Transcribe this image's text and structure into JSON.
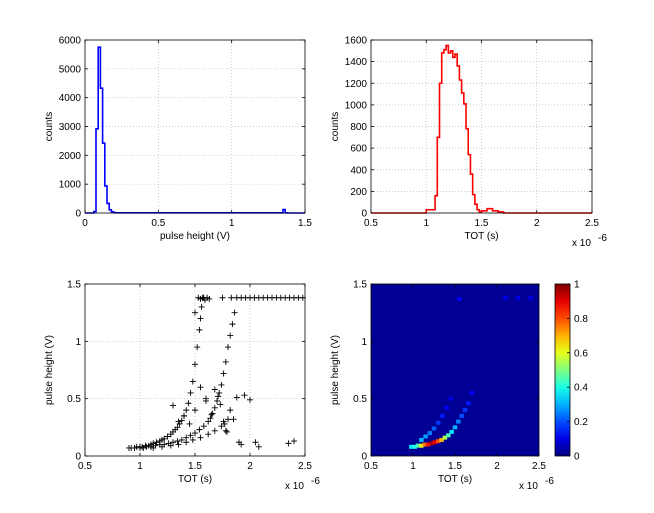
{
  "chart_data": [
    {
      "type": "histogram",
      "title": "",
      "xlabel": "pulse height (V)",
      "ylabel": "counts",
      "xlim": [
        0,
        1.5
      ],
      "ylim": [
        0,
        6000
      ],
      "xticks": [
        "0",
        "0.5",
        "1",
        "1.5"
      ],
      "yticks": [
        "0",
        "1000",
        "2000",
        "3000",
        "4000",
        "5000",
        "6000"
      ],
      "color": "#0000ff",
      "bin_edges": [
        0.0,
        0.06,
        0.075,
        0.09,
        0.105,
        0.12,
        0.135,
        0.15,
        0.165,
        0.18,
        0.195,
        0.21,
        0.3,
        1.35,
        1.365,
        1.38,
        1.5
      ],
      "counts": [
        0,
        50,
        2920,
        5750,
        4330,
        2420,
        940,
        330,
        110,
        40,
        10,
        8,
        5,
        120,
        5,
        0
      ]
    },
    {
      "type": "histogram",
      "title": "",
      "xlabel": "TOT (s)",
      "ylabel": "counts",
      "x_multiplier": "x 10",
      "x_exponent": "-6",
      "xlim": [
        0.5,
        2.5
      ],
      "ylim": [
        0,
        1600
      ],
      "xticks": [
        "0.5",
        "1",
        "1.5",
        "2",
        "2.5"
      ],
      "yticks": [
        "0",
        "200",
        "400",
        "600",
        "800",
        "1000",
        "1200",
        "1400",
        "1600"
      ],
      "color": "#ff0000",
      "bin_edges": [
        0.5,
        1.0,
        1.05,
        1.08,
        1.1,
        1.12,
        1.14,
        1.16,
        1.18,
        1.2,
        1.22,
        1.24,
        1.26,
        1.28,
        1.3,
        1.32,
        1.34,
        1.36,
        1.38,
        1.4,
        1.42,
        1.44,
        1.46,
        1.48,
        1.5,
        1.55,
        1.6,
        1.65,
        1.7,
        2.5
      ],
      "counts": [
        0,
        30,
        30,
        160,
        700,
        1200,
        1480,
        1510,
        1550,
        1480,
        1500,
        1440,
        1470,
        1360,
        1230,
        1110,
        1010,
        780,
        540,
        360,
        170,
        80,
        30,
        10,
        20,
        40,
        20,
        10,
        0
      ]
    },
    {
      "type": "scatter",
      "title": "",
      "xlabel": "TOT (s)",
      "ylabel": "pulse height (V)",
      "x_multiplier": "x 10",
      "x_exponent": "-6",
      "xlim": [
        0.5,
        2.5
      ],
      "ylim": [
        0,
        1.5
      ],
      "xticks": [
        "0.5",
        "1",
        "1.5",
        "2",
        "2.5"
      ],
      "yticks": [
        "0",
        "0.5",
        "1",
        "1.5"
      ],
      "marker": "+",
      "color": "#000000",
      "x": [
        0.9,
        0.92,
        0.95,
        0.97,
        1.0,
        1.02,
        1.05,
        1.08,
        1.1,
        1.12,
        1.15,
        1.18,
        1.2,
        1.22,
        1.25,
        1.28,
        1.3,
        1.32,
        1.34,
        1.36,
        1.38,
        1.4,
        1.42,
        1.44,
        1.46,
        1.48,
        1.5,
        1.52,
        1.54,
        1.55,
        1.56,
        1.57,
        1.58,
        1.0,
        1.03,
        1.06,
        1.1,
        1.14,
        1.18,
        1.22,
        1.26,
        1.3,
        1.34,
        1.38,
        1.42,
        1.46,
        1.5,
        1.54,
        1.58,
        1.62,
        1.64,
        1.66,
        1.68,
        1.7,
        1.72,
        1.74,
        1.76,
        1.78,
        1.8,
        1.82,
        1.84,
        1.86,
        1.12,
        1.2,
        1.28,
        1.35,
        1.42,
        1.48,
        1.55,
        1.62,
        1.68,
        1.74,
        1.8,
        1.53,
        1.55,
        1.57,
        1.59,
        1.61,
        1.63,
        1.68,
        1.71,
        1.73,
        1.76,
        1.77,
        1.78,
        1.79,
        1.82,
        1.95,
        2.0,
        1.35,
        1.4,
        1.45,
        1.5,
        1.55,
        1.6,
        1.3,
        1.85,
        1.9,
        1.92,
        2.05,
        2.08,
        1.6,
        1.65,
        1.88,
        2.35,
        2.4,
        1.5,
        1.75,
        1.83,
        1.88,
        1.92,
        1.96,
        2.0,
        2.04,
        2.08,
        2.12,
        2.16,
        2.2,
        2.24,
        2.28,
        2.32,
        2.36,
        2.4,
        2.44,
        2.48
      ],
      "y": [
        0.07,
        0.07,
        0.07,
        0.08,
        0.08,
        0.08,
        0.09,
        0.09,
        0.1,
        0.11,
        0.12,
        0.13,
        0.14,
        0.15,
        0.17,
        0.19,
        0.21,
        0.23,
        0.25,
        0.28,
        0.31,
        0.35,
        0.4,
        0.46,
        0.55,
        0.65,
        0.8,
        0.95,
        1.1,
        1.2,
        1.3,
        1.38,
        1.38,
        0.07,
        0.07,
        0.08,
        0.08,
        0.09,
        0.1,
        0.1,
        0.11,
        0.12,
        0.13,
        0.14,
        0.16,
        0.18,
        0.2,
        0.23,
        0.26,
        0.3,
        0.33,
        0.37,
        0.42,
        0.48,
        0.55,
        0.62,
        0.72,
        0.82,
        0.95,
        1.05,
        1.15,
        1.25,
        0.07,
        0.08,
        0.09,
        0.1,
        0.12,
        0.14,
        0.16,
        0.19,
        0.22,
        0.26,
        0.32,
        1.38,
        1.37,
        1.38,
        1.36,
        1.38,
        1.37,
        0.58,
        0.52,
        0.45,
        0.3,
        0.28,
        0.22,
        0.21,
        0.4,
        0.53,
        0.49,
        0.3,
        0.35,
        0.28,
        0.4,
        0.6,
        0.5,
        0.44,
        0.32,
        0.12,
        0.1,
        0.12,
        0.08,
        0.48,
        0.36,
        0.51,
        0.11,
        0.13,
        1.25,
        1.38,
        1.38,
        1.38,
        1.38,
        1.38,
        1.38,
        1.38,
        1.38,
        1.38,
        1.38,
        1.38,
        1.38,
        1.38,
        1.38,
        1.38,
        1.38,
        1.38,
        1.38
      ]
    },
    {
      "type": "heatmap",
      "title": "",
      "xlabel": "TOT (s)",
      "ylabel": "pulse height (V)",
      "x_multiplier": "x 10",
      "x_exponent": "-6",
      "xlim": [
        0.5,
        2.5
      ],
      "ylim": [
        0,
        1.5
      ],
      "xticks": [
        "0.5",
        "1",
        "1.5",
        "2",
        "2.5"
      ],
      "yticks": [
        "0",
        "0.5",
        "1",
        "1.5"
      ],
      "colorbar_range": [
        0,
        1
      ],
      "colorbar_ticks": [
        "0",
        "0.2",
        "0.4",
        "0.6",
        "0.8",
        "1"
      ],
      "colormap": "jet",
      "hot_cells": [
        {
          "x": 0.98,
          "y": 0.08,
          "v": 0.35
        },
        {
          "x": 1.02,
          "y": 0.08,
          "v": 0.4
        },
        {
          "x": 1.06,
          "y": 0.09,
          "v": 0.45
        },
        {
          "x": 1.1,
          "y": 0.09,
          "v": 0.6
        },
        {
          "x": 1.14,
          "y": 0.1,
          "v": 0.75
        },
        {
          "x": 1.18,
          "y": 0.1,
          "v": 0.85
        },
        {
          "x": 1.22,
          "y": 0.11,
          "v": 0.95
        },
        {
          "x": 1.26,
          "y": 0.12,
          "v": 0.9
        },
        {
          "x": 1.3,
          "y": 0.13,
          "v": 0.8
        },
        {
          "x": 1.34,
          "y": 0.14,
          "v": 0.7
        },
        {
          "x": 1.38,
          "y": 0.16,
          "v": 0.55
        },
        {
          "x": 1.42,
          "y": 0.18,
          "v": 0.45
        },
        {
          "x": 1.46,
          "y": 0.21,
          "v": 0.35
        },
        {
          "x": 1.5,
          "y": 0.25,
          "v": 0.3
        },
        {
          "x": 1.54,
          "y": 0.3,
          "v": 0.25
        },
        {
          "x": 1.58,
          "y": 0.35,
          "v": 0.2
        },
        {
          "x": 1.62,
          "y": 0.4,
          "v": 0.18
        },
        {
          "x": 1.66,
          "y": 0.46,
          "v": 0.15
        },
        {
          "x": 1.7,
          "y": 0.55,
          "v": 0.12
        },
        {
          "x": 1.1,
          "y": 0.14,
          "v": 0.3
        },
        {
          "x": 1.15,
          "y": 0.17,
          "v": 0.28
        },
        {
          "x": 1.2,
          "y": 0.2,
          "v": 0.25
        },
        {
          "x": 1.25,
          "y": 0.24,
          "v": 0.22
        },
        {
          "x": 1.3,
          "y": 0.29,
          "v": 0.18
        },
        {
          "x": 1.35,
          "y": 0.35,
          "v": 0.15
        },
        {
          "x": 1.4,
          "y": 0.42,
          "v": 0.12
        },
        {
          "x": 1.45,
          "y": 0.5,
          "v": 0.1
        },
        {
          "x": 1.55,
          "y": 1.37,
          "v": 0.12
        },
        {
          "x": 2.1,
          "y": 1.38,
          "v": 0.1
        },
        {
          "x": 2.25,
          "y": 1.38,
          "v": 0.1
        },
        {
          "x": 2.4,
          "y": 1.38,
          "v": 0.1
        }
      ]
    }
  ]
}
